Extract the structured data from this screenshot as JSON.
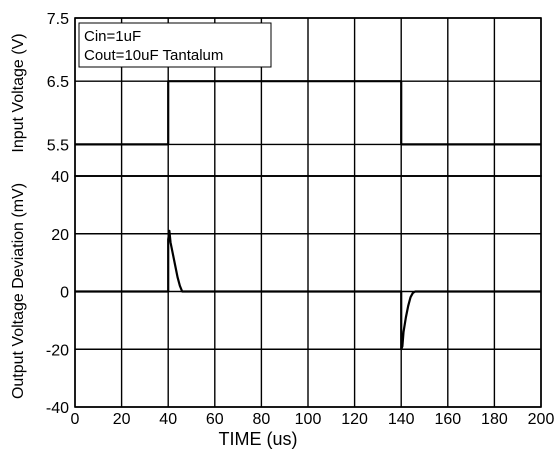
{
  "chart_data": [
    {
      "type": "line",
      "panel": "top",
      "ylabel": "Input Voltage (V)",
      "ylim": [
        5.0,
        7.5
      ],
      "yticks_labeled": [
        "7.5",
        "6.5",
        "5.5"
      ],
      "yticks": [
        5.5,
        6.5,
        7.5
      ],
      "xlim": [
        0,
        200
      ],
      "grid": true,
      "annotation": [
        "Cin=1uF",
        "Cout=10uF Tantalum"
      ],
      "series": [
        {
          "x": [
            0,
            40,
            40,
            140,
            140,
            200
          ],
          "y": [
            5.5,
            5.5,
            6.5,
            6.5,
            5.5,
            5.5
          ]
        }
      ]
    },
    {
      "type": "line",
      "panel": "bottom",
      "xlabel": "TIME (us)",
      "ylabel": "Output Voltage Deviation (mV)",
      "ylim": [
        -40,
        40
      ],
      "yticks": [
        -40,
        -20,
        0,
        20,
        40
      ],
      "xlim": [
        0,
        200
      ],
      "xticks": [
        0,
        20,
        40,
        60,
        80,
        100,
        120,
        140,
        160,
        180,
        200
      ],
      "grid": true,
      "series": [
        {
          "x": [
            0,
            40,
            40,
            40.5,
            41,
            42,
            43,
            44,
            45,
            46,
            47,
            140,
            140,
            140.5,
            141,
            142,
            143,
            144,
            145,
            146,
            200
          ],
          "y": [
            0,
            0,
            18,
            21,
            17,
            13,
            9,
            5,
            2,
            0,
            0,
            0,
            -20,
            -19,
            -14,
            -9,
            -5,
            -2,
            -0.5,
            0,
            0
          ]
        }
      ]
    }
  ]
}
